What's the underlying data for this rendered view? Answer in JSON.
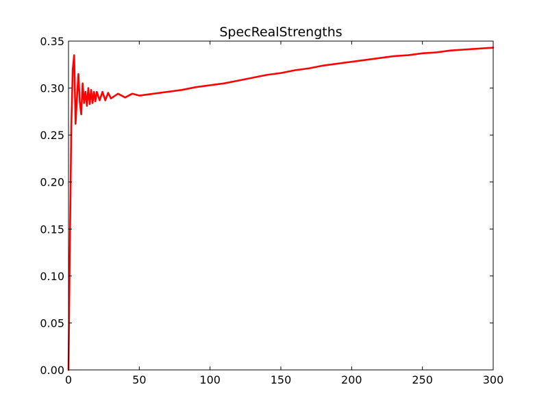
{
  "chart_data": {
    "type": "line",
    "title": "SpecRealStrengths",
    "xlabel": "",
    "ylabel": "",
    "xlim": [
      0,
      300
    ],
    "ylim": [
      0,
      0.35
    ],
    "x_ticks": [
      0,
      50,
      100,
      150,
      200,
      250,
      300
    ],
    "x_tick_labels": [
      "0",
      "50",
      "100",
      "150",
      "200",
      "250",
      "300"
    ],
    "y_ticks": [
      0,
      0.05,
      0.1,
      0.15,
      0.2,
      0.25,
      0.3,
      0.35
    ],
    "y_tick_labels": [
      "0.00",
      "0.05",
      "0.10",
      "0.15",
      "0.20",
      "0.25",
      "0.30",
      "0.35"
    ],
    "grid": false,
    "legend": "none",
    "series": [
      {
        "color": "#ff0000",
        "x": [
          0,
          0.8,
          2,
          3,
          4,
          5,
          6,
          7,
          8,
          9,
          10,
          11,
          12,
          13,
          14,
          15,
          16,
          17,
          18,
          19,
          20,
          22,
          24,
          26,
          28,
          30,
          35,
          40,
          45,
          50,
          60,
          70,
          80,
          90,
          100,
          110,
          120,
          130,
          140,
          150,
          160,
          170,
          180,
          190,
          200,
          210,
          220,
          230,
          240,
          250,
          260,
          270,
          280,
          290,
          300
        ],
        "y": [
          0.0,
          0.11,
          0.26,
          0.32,
          0.335,
          0.262,
          0.29,
          0.315,
          0.285,
          0.272,
          0.305,
          0.284,
          0.296,
          0.281,
          0.3,
          0.283,
          0.298,
          0.284,
          0.296,
          0.286,
          0.296,
          0.287,
          0.296,
          0.287,
          0.295,
          0.289,
          0.294,
          0.29,
          0.294,
          0.292,
          0.294,
          0.296,
          0.298,
          0.301,
          0.303,
          0.305,
          0.308,
          0.311,
          0.314,
          0.316,
          0.319,
          0.321,
          0.324,
          0.326,
          0.328,
          0.33,
          0.332,
          0.334,
          0.335,
          0.337,
          0.338,
          0.34,
          0.341,
          0.342,
          0.343
        ]
      }
    ]
  }
}
